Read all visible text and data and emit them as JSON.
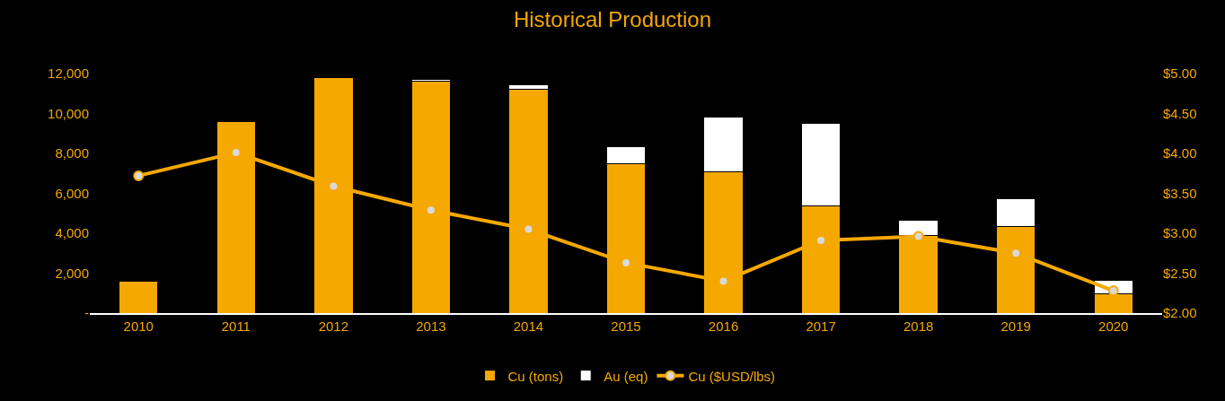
{
  "chart_data": {
    "type": "bar",
    "title": "Historical Production",
    "stacked": true,
    "categories": [
      "2010",
      "2011",
      "2012",
      "2013",
      "2014",
      "2015",
      "2016",
      "2017",
      "2018",
      "2019",
      "2020"
    ],
    "series": [
      {
        "name": "Cu (tons)",
        "color": "#f5a800",
        "values": [
          1600,
          9600,
          11800,
          11600,
          11200,
          7500,
          7100,
          5350,
          3900,
          4350,
          950
        ]
      },
      {
        "name": "Au (eq)",
        "color": "#ffffff",
        "values": [
          null,
          null,
          null,
          100,
          250,
          850,
          2700,
          4150,
          750,
          1400,
          700
        ]
      },
      {
        "name": "Cu ($USD/lbs)",
        "type": "line",
        "axis": "y2",
        "color": "#f5a800",
        "marker": "circle",
        "values": [
          3.72,
          4.01,
          3.59,
          3.29,
          3.05,
          2.63,
          2.4,
          2.91,
          2.96,
          2.75,
          2.28
        ]
      }
    ],
    "ylim": [
      0,
      12000
    ],
    "yticks": [
      {
        "value": 0,
        "label": "-"
      },
      {
        "value": 2000,
        "label": "2,000"
      },
      {
        "value": 4000,
        "label": "4,000"
      },
      {
        "value": 6000,
        "label": "6,000"
      },
      {
        "value": 8000,
        "label": "8,000"
      },
      {
        "value": 10000,
        "label": "10,000"
      },
      {
        "value": 12000,
        "label": "12,000"
      }
    ],
    "y2lim": [
      2,
      5
    ],
    "y2ticks": [
      {
        "value": 2,
        "label": "$2.00"
      },
      {
        "value": 2.5,
        "label": "$2.50"
      },
      {
        "value": 3,
        "label": "$3.00"
      },
      {
        "value": 3.5,
        "label": "$3.50"
      },
      {
        "value": 4,
        "label": "$4.00"
      },
      {
        "value": 4.5,
        "label": "$4.50"
      },
      {
        "value": 5,
        "label": "$5.00"
      }
    ],
    "grid": false,
    "legend": "bottom"
  }
}
